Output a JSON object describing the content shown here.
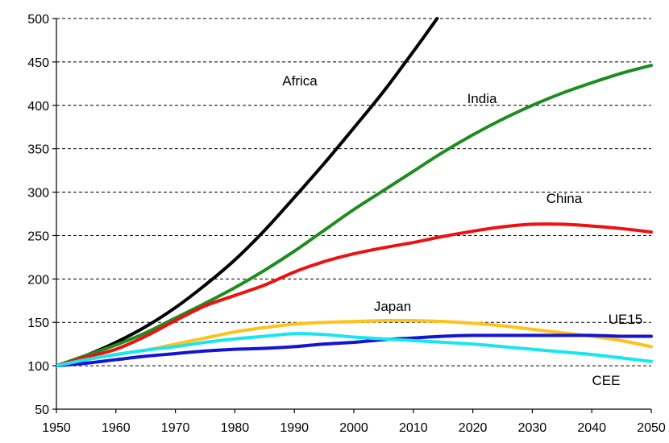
{
  "chart_data": {
    "type": "line",
    "title": "",
    "xlabel": "",
    "ylabel": "",
    "xlim": [
      1950,
      2050
    ],
    "ylim": [
      50,
      500
    ],
    "x_ticks": [
      "1950",
      "1960",
      "1970",
      "1980",
      "1990",
      "2000",
      "2010",
      "2020",
      "2030",
      "2040",
      "2050"
    ],
    "y_ticks": [
      "50",
      "100",
      "150",
      "200",
      "250",
      "300",
      "350",
      "400",
      "450",
      "500"
    ],
    "grid": true,
    "legend": "none",
    "series": [
      {
        "name": "Africa",
        "color": "#000000",
        "points": [
          [
            1950,
            100
          ],
          [
            1955,
            112
          ],
          [
            1960,
            127
          ],
          [
            1965,
            145
          ],
          [
            1970,
            167
          ],
          [
            1975,
            193
          ],
          [
            1980,
            222
          ],
          [
            1985,
            256
          ],
          [
            1990,
            294
          ],
          [
            1995,
            333
          ],
          [
            2000,
            374
          ],
          [
            2005,
            416
          ],
          [
            2010,
            462
          ],
          [
            2014,
            500
          ]
        ]
      },
      {
        "name": "India",
        "color": "#1e8c1e",
        "points": [
          [
            1950,
            100
          ],
          [
            1955,
            112
          ],
          [
            1960,
            124
          ],
          [
            1965,
            138
          ],
          [
            1970,
            155
          ],
          [
            1975,
            172
          ],
          [
            1980,
            190
          ],
          [
            1985,
            210
          ],
          [
            1990,
            232
          ],
          [
            1995,
            256
          ],
          [
            2000,
            280
          ],
          [
            2005,
            302
          ],
          [
            2010,
            324
          ],
          [
            2015,
            346
          ],
          [
            2020,
            366
          ],
          [
            2025,
            384
          ],
          [
            2030,
            400
          ],
          [
            2035,
            414
          ],
          [
            2040,
            426
          ],
          [
            2045,
            437
          ],
          [
            2050,
            446
          ]
        ]
      },
      {
        "name": "China",
        "color": "#ee1111",
        "points": [
          [
            1950,
            100
          ],
          [
            1955,
            110
          ],
          [
            1960,
            119
          ],
          [
            1965,
            134
          ],
          [
            1970,
            152
          ],
          [
            1975,
            169
          ],
          [
            1980,
            181
          ],
          [
            1985,
            193
          ],
          [
            1990,
            208
          ],
          [
            1995,
            220
          ],
          [
            2000,
            229
          ],
          [
            2005,
            236
          ],
          [
            2010,
            242
          ],
          [
            2015,
            249
          ],
          [
            2020,
            255
          ],
          [
            2025,
            260
          ],
          [
            2030,
            263
          ],
          [
            2035,
            263
          ],
          [
            2040,
            261
          ],
          [
            2045,
            258
          ],
          [
            2050,
            254
          ]
        ]
      },
      {
        "name": "Japan",
        "color": "#ffc21a",
        "points": [
          [
            1950,
            100
          ],
          [
            1955,
            107
          ],
          [
            1960,
            113
          ],
          [
            1965,
            118
          ],
          [
            1970,
            125
          ],
          [
            1975,
            132
          ],
          [
            1980,
            139
          ],
          [
            1985,
            144
          ],
          [
            1990,
            148
          ],
          [
            1995,
            150
          ],
          [
            2000,
            151
          ],
          [
            2005,
            152
          ],
          [
            2010,
            152
          ],
          [
            2015,
            151
          ],
          [
            2020,
            149
          ],
          [
            2025,
            146
          ],
          [
            2030,
            142
          ],
          [
            2035,
            138
          ],
          [
            2040,
            134
          ],
          [
            2045,
            129
          ],
          [
            2050,
            122
          ]
        ]
      },
      {
        "name": "UE15",
        "color": "#1414d2",
        "points": [
          [
            1950,
            100
          ],
          [
            1955,
            103
          ],
          [
            1960,
            107
          ],
          [
            1965,
            111
          ],
          [
            1970,
            114
          ],
          [
            1975,
            117
          ],
          [
            1980,
            119
          ],
          [
            1985,
            120
          ],
          [
            1990,
            122
          ],
          [
            1995,
            125
          ],
          [
            2000,
            127
          ],
          [
            2005,
            130
          ],
          [
            2010,
            132
          ],
          [
            2015,
            134
          ],
          [
            2020,
            135
          ],
          [
            2025,
            135
          ],
          [
            2030,
            135
          ],
          [
            2035,
            135
          ],
          [
            2040,
            135
          ],
          [
            2045,
            134
          ],
          [
            2050,
            134
          ]
        ]
      },
      {
        "name": "CEE",
        "color": "#18e6ee",
        "points": [
          [
            1950,
            100
          ],
          [
            1955,
            107
          ],
          [
            1960,
            113
          ],
          [
            1965,
            118
          ],
          [
            1970,
            122
          ],
          [
            1975,
            127
          ],
          [
            1980,
            131
          ],
          [
            1985,
            134
          ],
          [
            1990,
            137
          ],
          [
            1995,
            136
          ],
          [
            2000,
            133
          ],
          [
            2005,
            131
          ],
          [
            2010,
            129
          ],
          [
            2015,
            127
          ],
          [
            2020,
            125
          ],
          [
            2025,
            122
          ],
          [
            2030,
            119
          ],
          [
            2035,
            116
          ],
          [
            2040,
            113
          ],
          [
            2045,
            109
          ],
          [
            2050,
            105
          ]
        ]
      }
    ]
  }
}
